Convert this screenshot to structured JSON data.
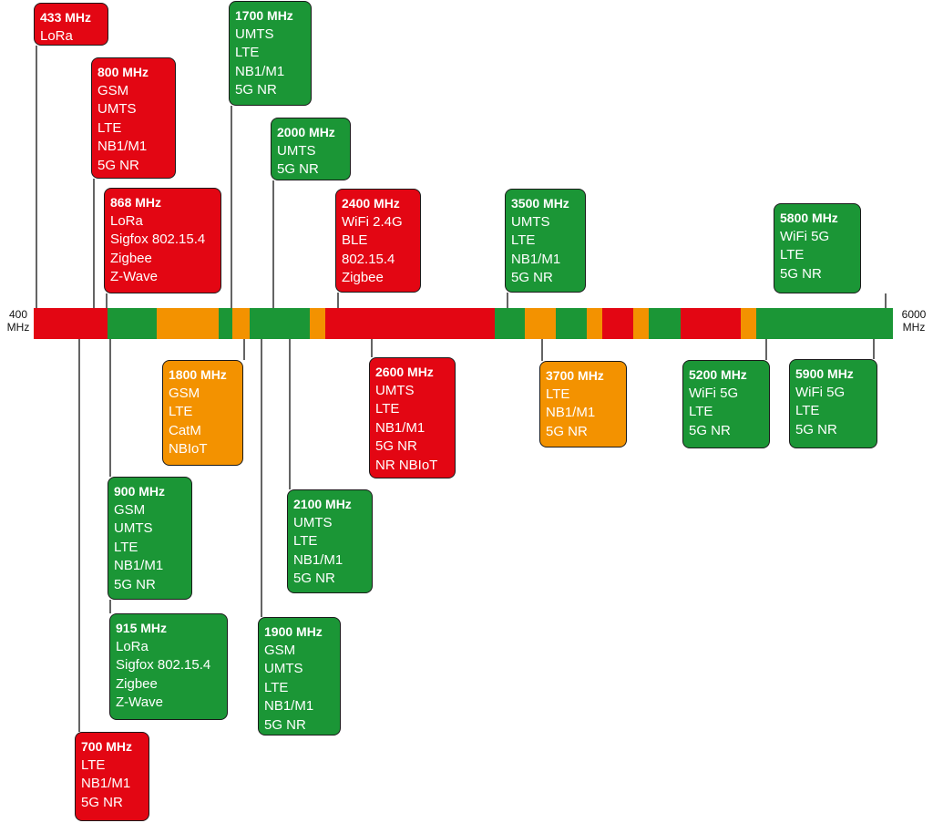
{
  "colors": {
    "red": "#e30613",
    "green": "#1b9636",
    "orange": "#f39200",
    "line": "#111111"
  },
  "axis": {
    "min_label": "400\nMHz",
    "max_label": "6000\nMHz"
  },
  "bar_segments": [
    {
      "color": "red"
    },
    {
      "color": "green"
    },
    {
      "color": "orange"
    },
    {
      "color": "green"
    },
    {
      "color": "orange"
    },
    {
      "color": "green"
    },
    {
      "color": "orange"
    },
    {
      "color": "red"
    },
    {
      "color": "green"
    },
    {
      "color": "orange"
    },
    {
      "color": "green"
    },
    {
      "color": "orange"
    },
    {
      "color": "red"
    },
    {
      "color": "orange"
    },
    {
      "color": "green"
    },
    {
      "color": "red"
    },
    {
      "color": "orange"
    },
    {
      "color": "green"
    }
  ],
  "bands": [
    {
      "freq": "433 MHz",
      "color": "red",
      "techs": [
        "LoRa"
      ]
    },
    {
      "freq": "800 MHz",
      "color": "red",
      "techs": [
        "GSM",
        "UMTS",
        "LTE",
        "NB1/M1",
        "5G NR"
      ]
    },
    {
      "freq": "868 MHz",
      "color": "red",
      "techs": [
        "LoRa",
        "Sigfox 802.15.4",
        "Zigbee",
        "Z-Wave"
      ]
    },
    {
      "freq": "1700 MHz",
      "color": "green",
      "techs": [
        "UMTS",
        "LTE",
        "NB1/M1",
        "5G NR"
      ]
    },
    {
      "freq": "2000 MHz",
      "color": "green",
      "techs": [
        "UMTS",
        "5G NR"
      ]
    },
    {
      "freq": "2400 MHz",
      "color": "red",
      "techs": [
        "WiFi 2.4G",
        "BLE",
        "802.15.4",
        "Zigbee"
      ]
    },
    {
      "freq": "3500 MHz",
      "color": "green",
      "techs": [
        "UMTS",
        "LTE",
        "NB1/M1",
        "5G NR"
      ]
    },
    {
      "freq": "5800 MHz",
      "color": "green",
      "techs": [
        "WiFi 5G",
        "LTE",
        "5G NR"
      ]
    },
    {
      "freq": "1800 MHz",
      "color": "orange",
      "techs": [
        "GSM",
        "LTE",
        "CatM",
        "NBIoT"
      ]
    },
    {
      "freq": "2600 MHz",
      "color": "red",
      "techs": [
        "UMTS",
        "LTE",
        "NB1/M1",
        "5G NR",
        "NR NBIoT"
      ]
    },
    {
      "freq": "3700 MHz",
      "color": "orange",
      "techs": [
        "LTE",
        "NB1/M1",
        "5G NR"
      ]
    },
    {
      "freq": "5200 MHz",
      "color": "green",
      "techs": [
        "WiFi 5G",
        "LTE",
        "5G NR"
      ]
    },
    {
      "freq": "5900 MHz",
      "color": "green",
      "techs": [
        "WiFi 5G",
        "LTE",
        "5G NR"
      ]
    },
    {
      "freq": "900 MHz",
      "color": "green",
      "techs": [
        "GSM",
        "UMTS",
        "LTE",
        "NB1/M1",
        "5G NR"
      ]
    },
    {
      "freq": "2100 MHz",
      "color": "green",
      "techs": [
        "UMTS",
        "LTE",
        "NB1/M1",
        "5G NR"
      ]
    },
    {
      "freq": "915 MHz",
      "color": "green",
      "techs": [
        "LoRa",
        "Sigfox 802.15.4",
        "Zigbee",
        "Z-Wave"
      ]
    },
    {
      "freq": "1900 MHz",
      "color": "green",
      "techs": [
        "GSM",
        "UMTS",
        "LTE",
        "NB1/M1",
        "5G NR"
      ]
    },
    {
      "freq": "700 MHz",
      "color": "red",
      "techs": [
        "LTE",
        "NB1/M1",
        "5G NR"
      ]
    }
  ]
}
